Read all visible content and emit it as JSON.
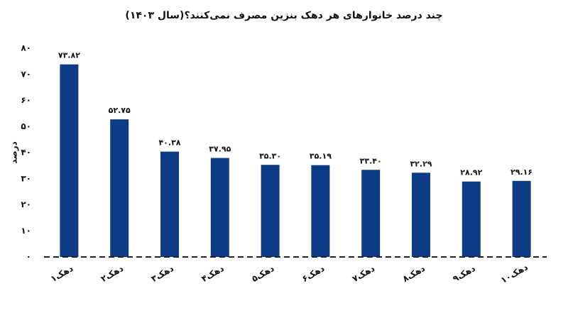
{
  "chart_data": {
    "type": "bar",
    "title": "چند درصد خانوارهای هر دهک بنزین مصرف نمی‌کنند؟(سال ۱۴۰۳)",
    "y_label": "درصد",
    "categories": [
      "دهک۱",
      "دهک۲",
      "دهک۳",
      "دهک۴",
      "دهک۵",
      "دهک۶",
      "دهک۷",
      "دهک۸",
      "دهک۹",
      "دهک۱۰"
    ],
    "values": [
      73.82,
      52.75,
      40.38,
      37.95,
      35.3,
      35.19,
      33.4,
      32.29,
      28.92,
      29.16
    ],
    "value_labels": [
      "۷۳.۸۲",
      "۵۲.۷۵",
      "۴۰.۳۸",
      "۳۷.۹۵",
      "۳۵.۳۰",
      "۳۵.۱۹",
      "۳۳.۴۰",
      "۳۲.۲۹",
      "۲۸.۹۲",
      "۲۹.۱۶"
    ],
    "color": "#0d3b85",
    "ylim": [
      0,
      80
    ],
    "yticks": [
      {
        "value": 0,
        "label": "۰"
      },
      {
        "value": 10,
        "label": "۱۰"
      },
      {
        "value": 20,
        "label": "۲۰"
      },
      {
        "value": 30,
        "label": "۳۰"
      },
      {
        "value": 40,
        "label": "۴۰"
      },
      {
        "value": 50,
        "label": "۵۰"
      },
      {
        "value": 60,
        "label": "۶۰"
      },
      {
        "value": 70,
        "label": "۷۰"
      },
      {
        "value": 80,
        "label": "۸۰"
      }
    ],
    "grid": false
  }
}
